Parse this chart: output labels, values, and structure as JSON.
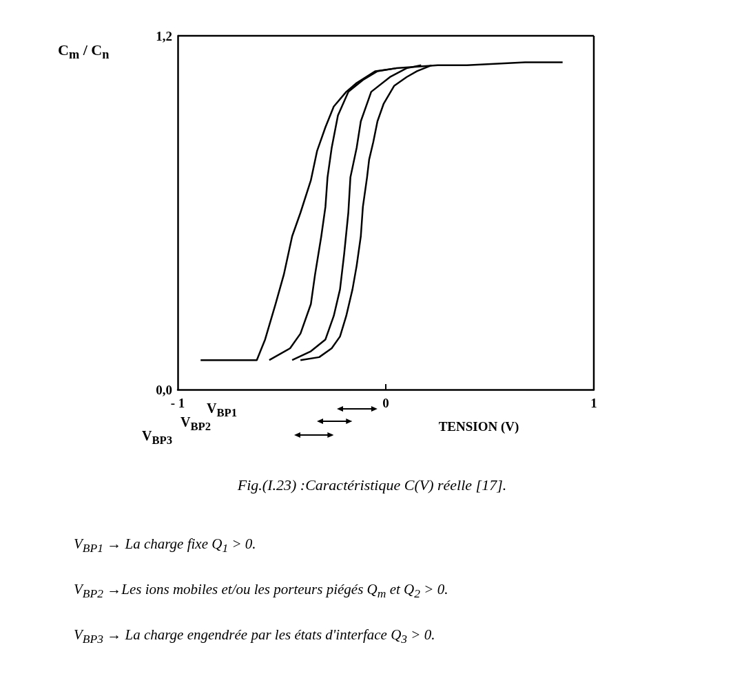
{
  "chart_data": {
    "type": "line",
    "ylabel": "C$_{m}$ / C$_{n}$",
    "xlabel": "TENSION (V)",
    "xlim": [
      -1,
      1
    ],
    "ylim": [
      0,
      1.2
    ],
    "xticks": [
      {
        "value": -1,
        "label": "- 1"
      },
      0,
      1
    ],
    "yticks": [
      {
        "value": 0,
        "label": "0,0"
      },
      {
        "value": 1.2,
        "label": "1,2"
      }
    ],
    "annotations": [
      "V$_{BP1}$",
      "V$_{BP2}$",
      "V$_{BP3}$",
      "Fig.(I.23) :Caractéristique C(V) réelle [17].",
      "V$_{BP1}$ → La charge fixe Q$_{1}$ > 0.",
      "V$_{BP2}$ →Les ions mobiles et/ou les porteurs piégés Q$_{m}$ et Q$_{2}$ > 0.",
      "V$_{BP3}$ → La charge engendrée par les états d'interface Q$_{3}$ > 0."
    ],
    "series": [
      {
        "color": "#000000",
        "x": [
          -0.89,
          -0.62,
          -0.58,
          -0.53,
          -0.49,
          -0.45,
          -0.41,
          -0.36,
          -0.33,
          -0.29,
          -0.25,
          -0.19,
          -0.14,
          -0.05,
          0.05,
          0.25,
          0.39,
          0.67,
          0.85
        ],
        "values": [
          0.1,
          0.1,
          0.17,
          0.29,
          0.39,
          0.52,
          0.6,
          0.71,
          0.81,
          0.89,
          0.96,
          1.01,
          1.04,
          1.08,
          1.09,
          1.1,
          1.1,
          1.11,
          1.11
        ]
      },
      {
        "color": "#000000",
        "x": [
          -0.56,
          -0.46,
          -0.41,
          -0.36,
          -0.34,
          -0.31,
          -0.29,
          -0.28,
          -0.26,
          -0.23,
          -0.18,
          -0.11,
          -0.04,
          0.05
        ],
        "values": [
          0.1,
          0.14,
          0.19,
          0.29,
          0.39,
          0.52,
          0.62,
          0.72,
          0.82,
          0.93,
          1.01,
          1.05,
          1.08,
          1.09
        ]
      },
      {
        "color": "#000000",
        "x": [
          -0.45,
          -0.36,
          -0.29,
          -0.25,
          -0.22,
          -0.2,
          -0.18,
          -0.17,
          -0.14,
          -0.12,
          -0.07,
          0.02,
          0.1,
          0.17
        ],
        "values": [
          0.1,
          0.13,
          0.17,
          0.25,
          0.34,
          0.46,
          0.6,
          0.72,
          0.82,
          0.91,
          1.01,
          1.06,
          1.09,
          1.1
        ]
      },
      {
        "color": "#000000",
        "x": [
          -0.41,
          -0.32,
          -0.26,
          -0.22,
          -0.19,
          -0.16,
          -0.14,
          -0.12,
          -0.11,
          -0.09,
          -0.08,
          -0.06,
          -0.04,
          -0.01,
          0.04,
          0.1,
          0.15,
          0.22
        ],
        "values": [
          0.1,
          0.11,
          0.14,
          0.18,
          0.25,
          0.34,
          0.42,
          0.52,
          0.62,
          0.72,
          0.78,
          0.84,
          0.91,
          0.97,
          1.03,
          1.06,
          1.08,
          1.1
        ]
      }
    ]
  }
}
